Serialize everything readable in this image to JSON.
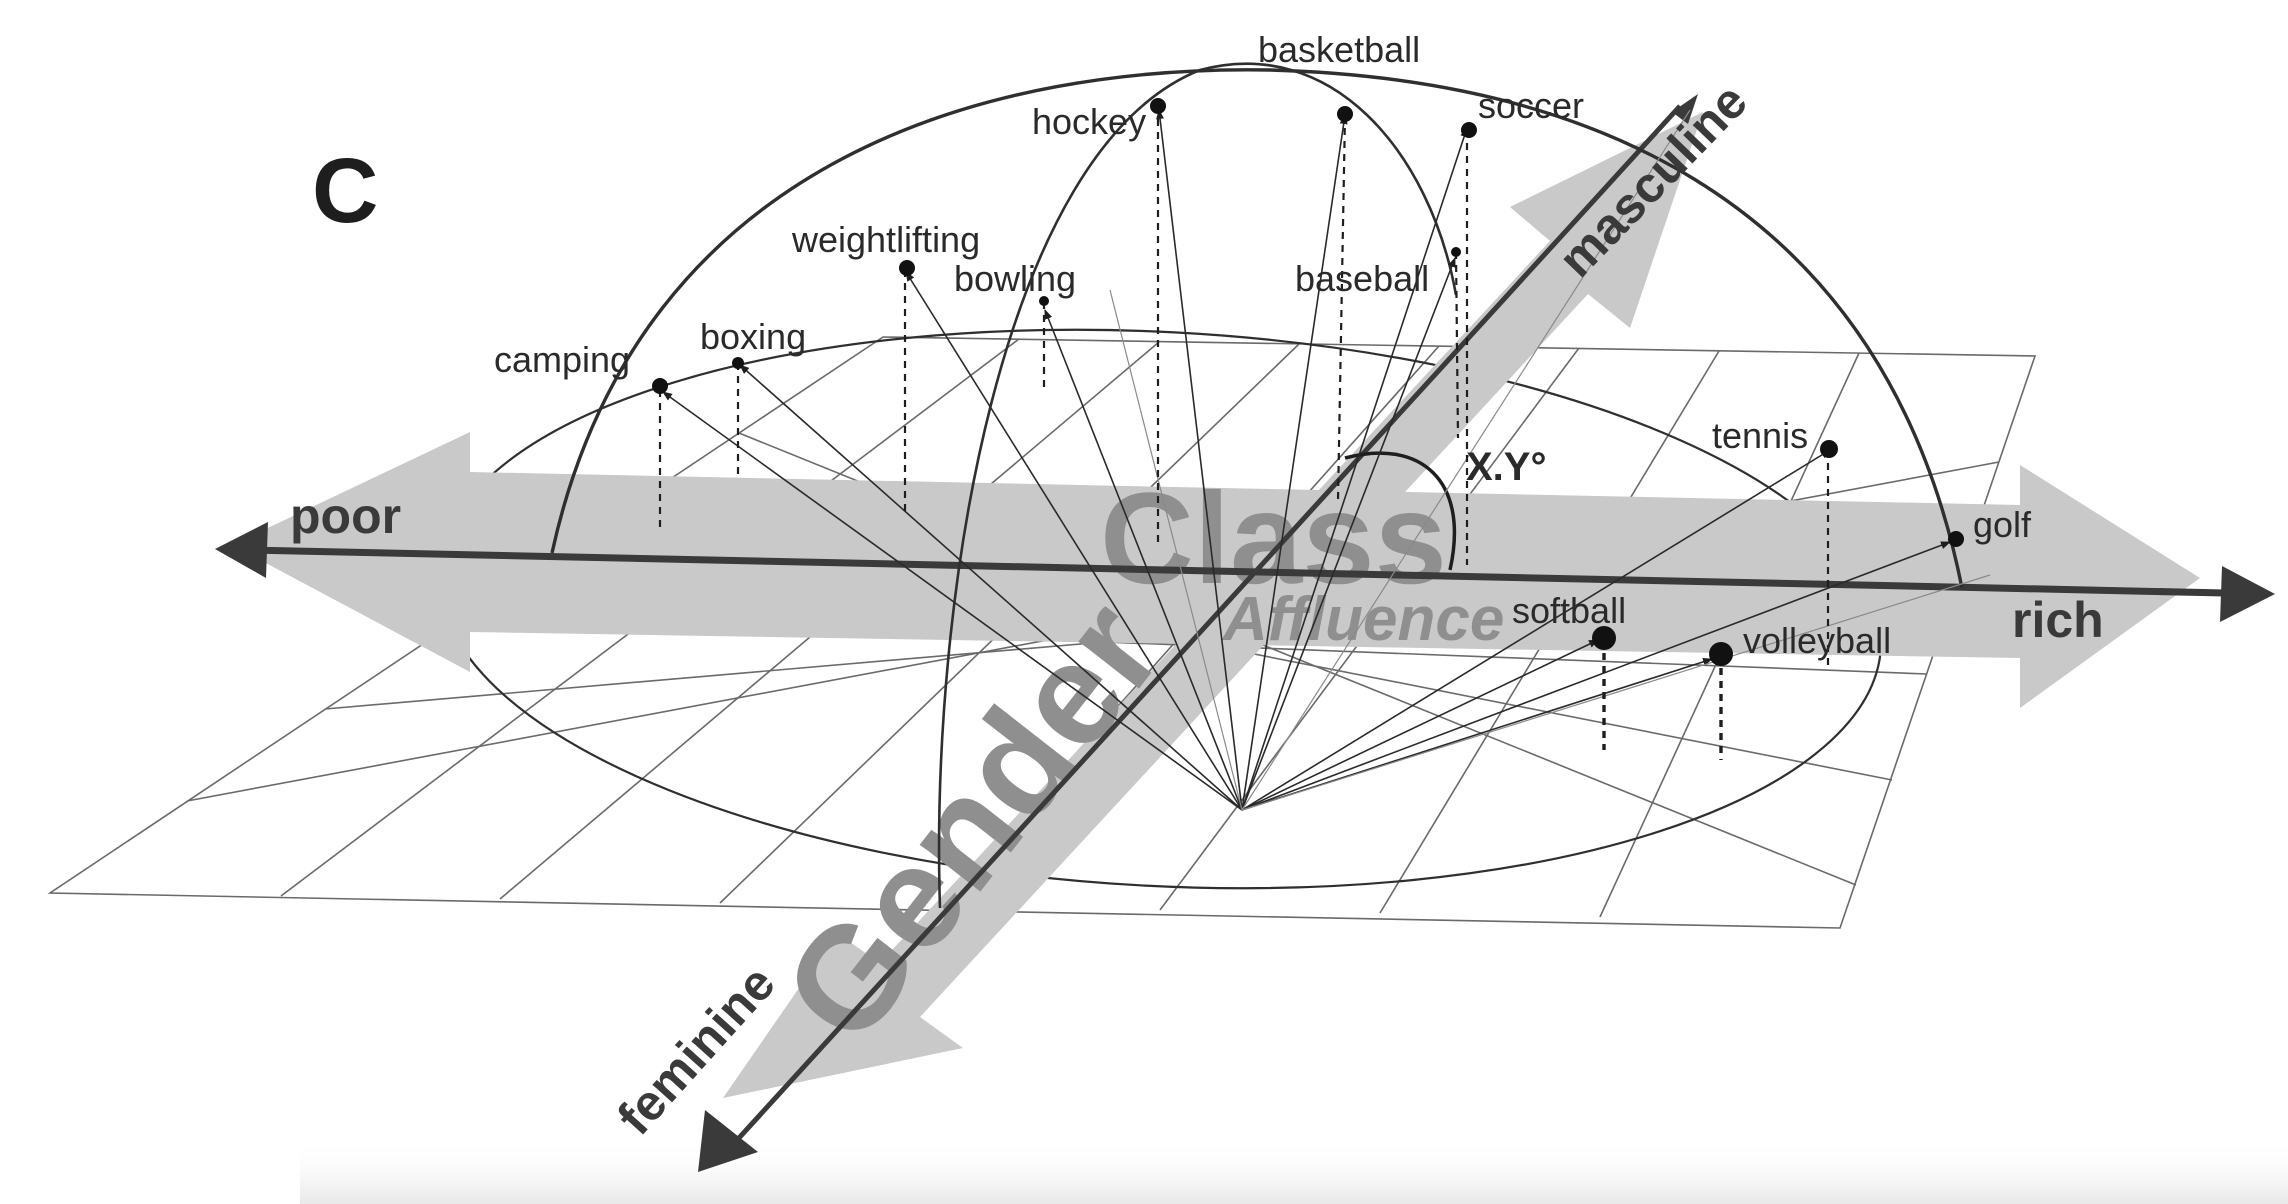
{
  "panel_label": "C",
  "dimensions": {
    "class": "Class",
    "affluence": "Affluence",
    "gender": "Gender",
    "angle": "X.Y°"
  },
  "axis_ends": {
    "poor": "poor",
    "rich": "rich",
    "masculine": "masculine",
    "feminine": "feminine"
  },
  "sports": [
    {
      "id": "basketball",
      "label": "basketball"
    },
    {
      "id": "hockey",
      "label": "hockey"
    },
    {
      "id": "soccer",
      "label": "soccer"
    },
    {
      "id": "weightlifting",
      "label": "weightlifting"
    },
    {
      "id": "bowling",
      "label": "bowling"
    },
    {
      "id": "baseball",
      "label": "baseball"
    },
    {
      "id": "camping",
      "label": "camping"
    },
    {
      "id": "boxing",
      "label": "boxing"
    },
    {
      "id": "tennis",
      "label": "tennis"
    },
    {
      "id": "golf",
      "label": "golf"
    },
    {
      "id": "softball",
      "label": "softball"
    },
    {
      "id": "volleyball",
      "label": "volleyball"
    }
  ],
  "colors": {
    "band": "#c9c9c9",
    "big_text": "#8f8f8f",
    "line": "#2f2f2f",
    "grid": "#6a6a6a"
  }
}
